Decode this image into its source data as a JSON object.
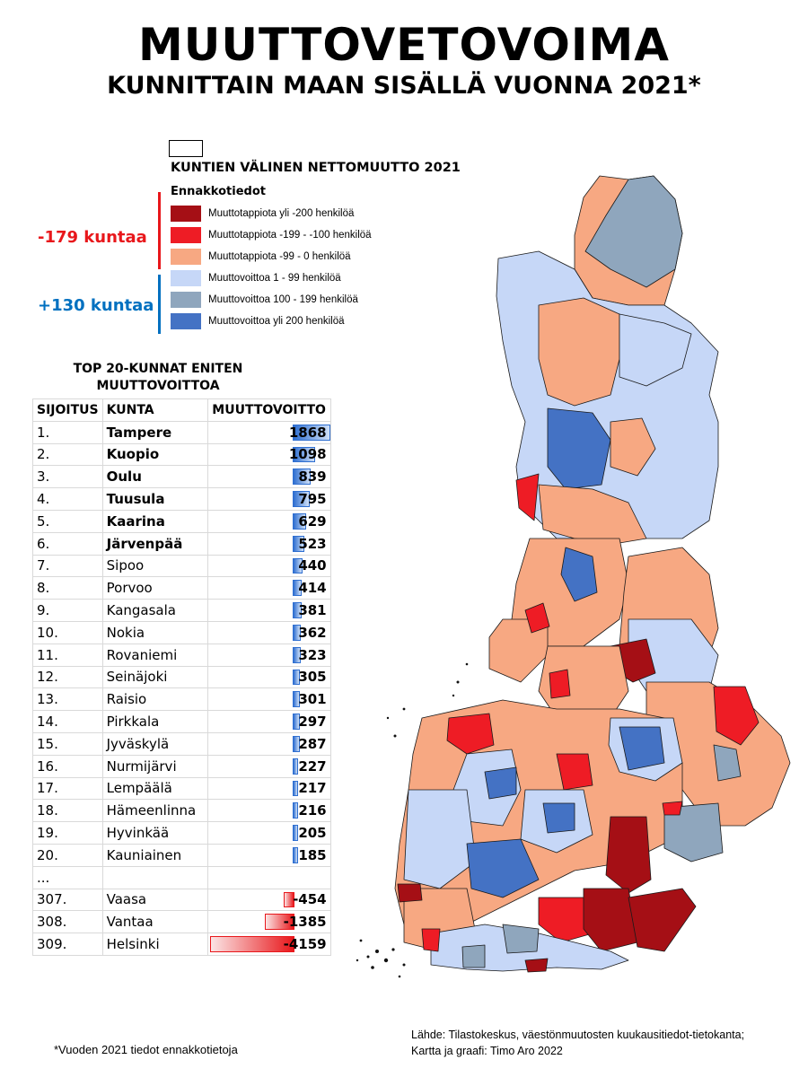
{
  "title": "MUUTTOVETOVOIMA",
  "subtitle": "KUNNITTAIN MAAN SISÄLLÄ VUONNA 2021*",
  "legend": {
    "title": "KUNTIEN VÄLINEN NETTOMUUTTO 2021",
    "subtitle": "Ennakkotiedot",
    "items": [
      {
        "label": "Muuttotappiota yli -200 henkilöä",
        "color": "#a50f15"
      },
      {
        "label": "Muuttotappiota -199 - -100 henkilöä",
        "color": "#ee1c25"
      },
      {
        "label": "Muuttotappiota -99 - 0 henkilöä",
        "color": "#f7a882"
      },
      {
        "label": "Muuttovoittoa 1 - 99 henkilöä",
        "color": "#c6d7f7"
      },
      {
        "label": "Muuttovoittoa 100 - 199 henkilöä",
        "color": "#8fa6bd"
      },
      {
        "label": "Muuttovoittoa yli 200 henkilöä",
        "color": "#4472c4"
      }
    ],
    "loss_count": "-179 kuntaa",
    "gain_count": "+130 kuntaa",
    "loss_color": "#e8171b",
    "gain_color": "#0070c0"
  },
  "ranking": {
    "title_line1": "TOP 20-KUNNAT ENITEN",
    "title_line2": "MUUTTOVOITTOA",
    "headers": [
      "SIJOITUS",
      "KUNTA",
      "MUUTTOVOITTO"
    ],
    "max_abs": 4159,
    "rows": [
      {
        "rank": "1.",
        "name": "Tampere",
        "value": 1868,
        "bold": true
      },
      {
        "rank": "2.",
        "name": "Kuopio",
        "value": 1098,
        "bold": true
      },
      {
        "rank": "3.",
        "name": "Oulu",
        "value": 839,
        "bold": true
      },
      {
        "rank": "4.",
        "name": "Tuusula",
        "value": 795,
        "bold": true
      },
      {
        "rank": "5.",
        "name": "Kaarina",
        "value": 629,
        "bold": true
      },
      {
        "rank": "6.",
        "name": "Järvenpää",
        "value": 523,
        "bold": true
      },
      {
        "rank": "7.",
        "name": "Sipoo",
        "value": 440,
        "bold": false
      },
      {
        "rank": "8.",
        "name": "Porvoo",
        "value": 414,
        "bold": false
      },
      {
        "rank": "9.",
        "name": "Kangasala",
        "value": 381,
        "bold": false
      },
      {
        "rank": "10.",
        "name": "Nokia",
        "value": 362,
        "bold": false
      },
      {
        "rank": "11.",
        "name": "Rovaniemi",
        "value": 323,
        "bold": false
      },
      {
        "rank": "12.",
        "name": "Seinäjoki",
        "value": 305,
        "bold": false
      },
      {
        "rank": "13.",
        "name": "Raisio",
        "value": 301,
        "bold": false
      },
      {
        "rank": "14.",
        "name": "Pirkkala",
        "value": 297,
        "bold": false
      },
      {
        "rank": "15.",
        "name": "Jyväskylä",
        "value": 287,
        "bold": false
      },
      {
        "rank": "16.",
        "name": "Nurmijärvi",
        "value": 227,
        "bold": false
      },
      {
        "rank": "17.",
        "name": "Lempäälä",
        "value": 217,
        "bold": false
      },
      {
        "rank": "18.",
        "name": "Hämeenlinna",
        "value": 216,
        "bold": false
      },
      {
        "rank": "19.",
        "name": "Hyvinkää",
        "value": 205,
        "bold": false
      },
      {
        "rank": "20.",
        "name": "Kauniainen",
        "value": 185,
        "bold": false
      }
    ],
    "ellipsis": "...",
    "bottom_rows": [
      {
        "rank": "307.",
        "name": "Vaasa",
        "value": -454
      },
      {
        "rank": "308.",
        "name": "Vantaa",
        "value": -1385
      },
      {
        "rank": "309.",
        "name": "Helsinki",
        "value": -4159
      }
    ]
  },
  "footnote": "*Vuoden 2021 tiedot ennakkotietoja",
  "source_line1": "Lähde: Tilastokeskus, väestönmuutosten kuukausitiedot-tietokanta;",
  "source_line2": "Kartta ja graafi: Timo Aro 2022"
}
